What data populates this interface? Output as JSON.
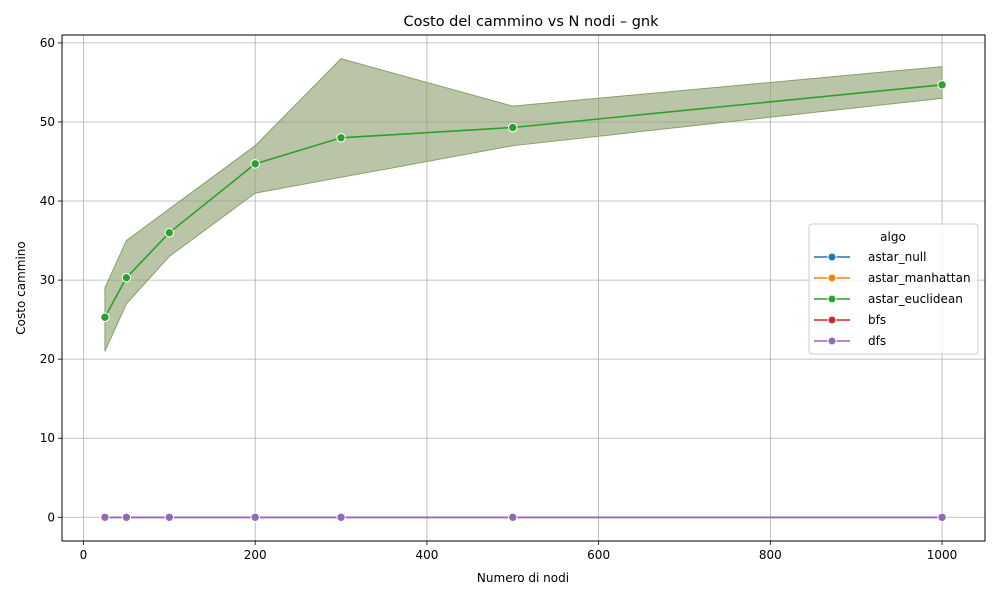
{
  "chart_data": {
    "type": "line",
    "title": "Costo del cammino vs N nodi – gnk",
    "xlabel": "Numero di nodi",
    "ylabel": "Costo cammino",
    "xlim": [
      -25,
      1050
    ],
    "ylim": [
      -3,
      61
    ],
    "xticks": [
      0,
      200,
      400,
      600,
      800,
      1000
    ],
    "yticks": [
      0,
      10,
      20,
      30,
      40,
      50,
      60
    ],
    "grid": true,
    "legend_title": "algo",
    "legend_position": "center-right",
    "x": [
      25,
      50,
      100,
      200,
      300,
      500,
      1000
    ],
    "series": [
      {
        "name": "astar_null",
        "color": "#1f77b4",
        "values": [
          0,
          0,
          0,
          0,
          0,
          0,
          0
        ]
      },
      {
        "name": "astar_manhattan",
        "color": "#ff7f0e",
        "values": [
          0,
          0,
          0,
          0,
          0,
          0,
          0
        ]
      },
      {
        "name": "astar_euclidean",
        "color": "#2ca02c",
        "values": [
          25.3,
          30.3,
          36.0,
          44.7,
          48.0,
          49.3,
          54.7
        ],
        "band_lower": [
          21.0,
          27.0,
          33.0,
          41.0,
          43.0,
          47.0,
          53.0
        ],
        "band_upper": [
          29.0,
          35.0,
          39.0,
          47.0,
          58.0,
          52.0,
          57.0
        ]
      },
      {
        "name": "bfs",
        "color": "#d62728",
        "values": [
          0,
          0,
          0,
          0,
          0,
          0,
          0
        ]
      },
      {
        "name": "dfs",
        "color": "#9467bd",
        "values": [
          0,
          0,
          0,
          0,
          0,
          0,
          0
        ]
      }
    ],
    "band_color": "#8a9f6a"
  }
}
